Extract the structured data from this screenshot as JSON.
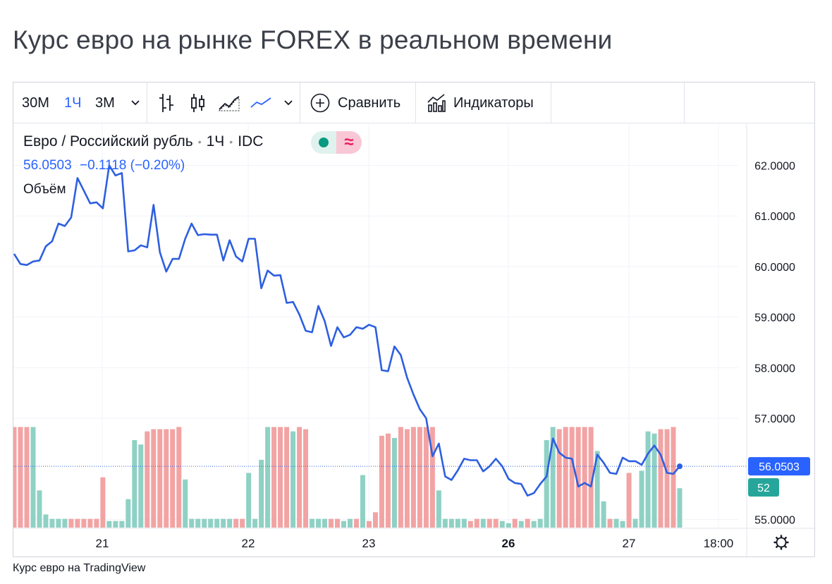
{
  "page_title": "Курс евро на рынке FOREX в реальном времени",
  "toolbar": {
    "intervals": [
      "30M",
      "1Ч",
      "3M"
    ],
    "active_interval": "1Ч",
    "compare_label": "Сравнить",
    "indicators_label": "Индикаторы"
  },
  "legend": {
    "symbol": "Евро / Российский рубль",
    "interval": "1Ч",
    "source": "IDC",
    "last_price": "56.0503",
    "change": "−0.1118 (−0.20%)",
    "volume_label": "Объём",
    "status_icon": "≈"
  },
  "price_label": "56.0503",
  "volume_label_value": "52",
  "caption": "Курс евро на TradingView",
  "colors": {
    "line": "#2d5fe0",
    "vol_up": "#8fd1c4",
    "vol_down": "#f2a3a3",
    "price_badge": "#2962ff",
    "volume_badge": "#26a69a"
  },
  "chart_data": {
    "type": "line",
    "x_ticks": [
      "21",
      "22",
      "23",
      "26",
      "27",
      "18:00"
    ],
    "y_ticks": [
      "62.0000",
      "61.0000",
      "60.0000",
      "59.0000",
      "58.0000",
      "57.0000",
      "55.0000"
    ],
    "ylim": [
      54.8,
      62.3
    ],
    "series": [
      {
        "values": [
          60.25,
          60.05,
          60.03,
          60.1,
          60.12,
          60.4,
          60.5,
          60.85,
          60.8,
          60.97,
          61.75,
          61.5,
          61.25,
          61.27,
          61.15,
          62.0,
          61.8,
          61.85,
          60.3,
          60.32,
          60.42,
          60.38,
          61.22,
          60.28,
          59.9,
          60.15,
          60.15,
          60.55,
          60.85,
          60.62,
          60.64,
          60.63,
          60.63,
          60.12,
          60.52,
          60.2,
          60.1,
          60.55,
          60.55,
          59.57,
          59.92,
          59.82,
          59.83,
          59.28,
          59.3,
          59.05,
          58.73,
          58.7,
          59.22,
          58.92,
          58.43,
          58.8,
          58.6,
          58.65,
          58.8,
          58.77,
          58.85,
          58.8,
          57.95,
          57.93,
          58.42,
          58.25,
          57.8,
          57.47,
          57.18,
          57.0,
          56.25,
          56.5,
          55.85,
          55.78,
          55.97,
          56.2,
          56.17,
          56.17,
          55.95,
          56.05,
          56.2,
          56.05,
          55.8,
          55.72,
          55.7,
          55.47,
          55.52,
          55.7,
          55.85,
          56.6,
          56.32,
          56.22,
          56.2,
          55.65,
          55.72,
          55.65,
          56.28,
          56.12,
          55.92,
          55.9,
          56.22,
          56.15,
          56.15,
          56.08,
          56.3,
          56.46,
          56.28,
          55.92,
          55.9,
          56.05
        ]
      }
    ],
    "volume": [
      {
        "v": 46,
        "d": 0
      },
      {
        "v": 46,
        "d": 0
      },
      {
        "v": 46,
        "d": 0
      },
      {
        "v": 46,
        "d": 1
      },
      {
        "v": 17,
        "d": 1
      },
      {
        "v": 6,
        "d": 1
      },
      {
        "v": 4,
        "d": 1
      },
      {
        "v": 4,
        "d": 1
      },
      {
        "v": 4,
        "d": 1
      },
      {
        "v": 4,
        "d": 0
      },
      {
        "v": 4,
        "d": 0
      },
      {
        "v": 4,
        "d": 0
      },
      {
        "v": 4,
        "d": 0
      },
      {
        "v": 4,
        "d": 0
      },
      {
        "v": 23,
        "d": 0
      },
      {
        "v": 3,
        "d": 1
      },
      {
        "v": 3,
        "d": 1
      },
      {
        "v": 3,
        "d": 1
      },
      {
        "v": 13,
        "d": 1
      },
      {
        "v": 40,
        "d": 1
      },
      {
        "v": 38,
        "d": 1
      },
      {
        "v": 44,
        "d": 0
      },
      {
        "v": 45,
        "d": 0
      },
      {
        "v": 45,
        "d": 0
      },
      {
        "v": 45,
        "d": 0
      },
      {
        "v": 45,
        "d": 0
      },
      {
        "v": 46,
        "d": 0
      },
      {
        "v": 22,
        "d": 1
      },
      {
        "v": 4,
        "d": 1
      },
      {
        "v": 4,
        "d": 1
      },
      {
        "v": 4,
        "d": 1
      },
      {
        "v": 4,
        "d": 1
      },
      {
        "v": 4,
        "d": 1
      },
      {
        "v": 4,
        "d": 1
      },
      {
        "v": 4,
        "d": 1
      },
      {
        "v": 4,
        "d": 0
      },
      {
        "v": 4,
        "d": 0
      },
      {
        "v": 25,
        "d": 1
      },
      {
        "v": 4,
        "d": 1
      },
      {
        "v": 31,
        "d": 1
      },
      {
        "v": 46,
        "d": 1
      },
      {
        "v": 46,
        "d": 0
      },
      {
        "v": 46,
        "d": 0
      },
      {
        "v": 46,
        "d": 0
      },
      {
        "v": 44,
        "d": 1
      },
      {
        "v": 46,
        "d": 0
      },
      {
        "v": 45,
        "d": 0
      },
      {
        "v": 4,
        "d": 1
      },
      {
        "v": 4,
        "d": 1
      },
      {
        "v": 4,
        "d": 1
      },
      {
        "v": 4,
        "d": 0
      },
      {
        "v": 4,
        "d": 0
      },
      {
        "v": 3,
        "d": 1
      },
      {
        "v": 4,
        "d": 1
      },
      {
        "v": 4,
        "d": 0
      },
      {
        "v": 24,
        "d": 1
      },
      {
        "v": 3,
        "d": 0
      },
      {
        "v": 7,
        "d": 0
      },
      {
        "v": 42,
        "d": 0
      },
      {
        "v": 43,
        "d": 0
      },
      {
        "v": 41,
        "d": 1
      },
      {
        "v": 46,
        "d": 0
      },
      {
        "v": 45,
        "d": 0
      },
      {
        "v": 46,
        "d": 0
      },
      {
        "v": 46,
        "d": 0
      },
      {
        "v": 46,
        "d": 0
      },
      {
        "v": 46,
        "d": 0
      },
      {
        "v": 17,
        "d": 1
      },
      {
        "v": 4,
        "d": 1
      },
      {
        "v": 4,
        "d": 1
      },
      {
        "v": 4,
        "d": 1
      },
      {
        "v": 4,
        "d": 1
      },
      {
        "v": 3,
        "d": 0
      },
      {
        "v": 4,
        "d": 0
      },
      {
        "v": 4,
        "d": 1
      },
      {
        "v": 4,
        "d": 0
      },
      {
        "v": 4,
        "d": 0
      },
      {
        "v": 3,
        "d": 1
      },
      {
        "v": 2,
        "d": 1
      },
      {
        "v": 4,
        "d": 0
      },
      {
        "v": 3,
        "d": 1
      },
      {
        "v": 4,
        "d": 0
      },
      {
        "v": 3,
        "d": 1
      },
      {
        "v": 4,
        "d": 1
      },
      {
        "v": 40,
        "d": 1
      },
      {
        "v": 46,
        "d": 1
      },
      {
        "v": 45,
        "d": 0
      },
      {
        "v": 46,
        "d": 0
      },
      {
        "v": 46,
        "d": 0
      },
      {
        "v": 46,
        "d": 0
      },
      {
        "v": 46,
        "d": 0
      },
      {
        "v": 46,
        "d": 0
      },
      {
        "v": 35,
        "d": 1
      },
      {
        "v": 12,
        "d": 1
      },
      {
        "v": 4,
        "d": 0
      },
      {
        "v": 4,
        "d": 1
      },
      {
        "v": 3,
        "d": 1
      },
      {
        "v": 25,
        "d": 0
      },
      {
        "v": 4,
        "d": 1
      },
      {
        "v": 26,
        "d": 1
      },
      {
        "v": 44,
        "d": 1
      },
      {
        "v": 43,
        "d": 1
      },
      {
        "v": 45,
        "d": 0
      },
      {
        "v": 45,
        "d": 0
      },
      {
        "v": 46,
        "d": 0
      },
      {
        "v": 18,
        "d": 1
      }
    ],
    "current_price": 56.0503,
    "current_volume": 52,
    "grid": true
  }
}
